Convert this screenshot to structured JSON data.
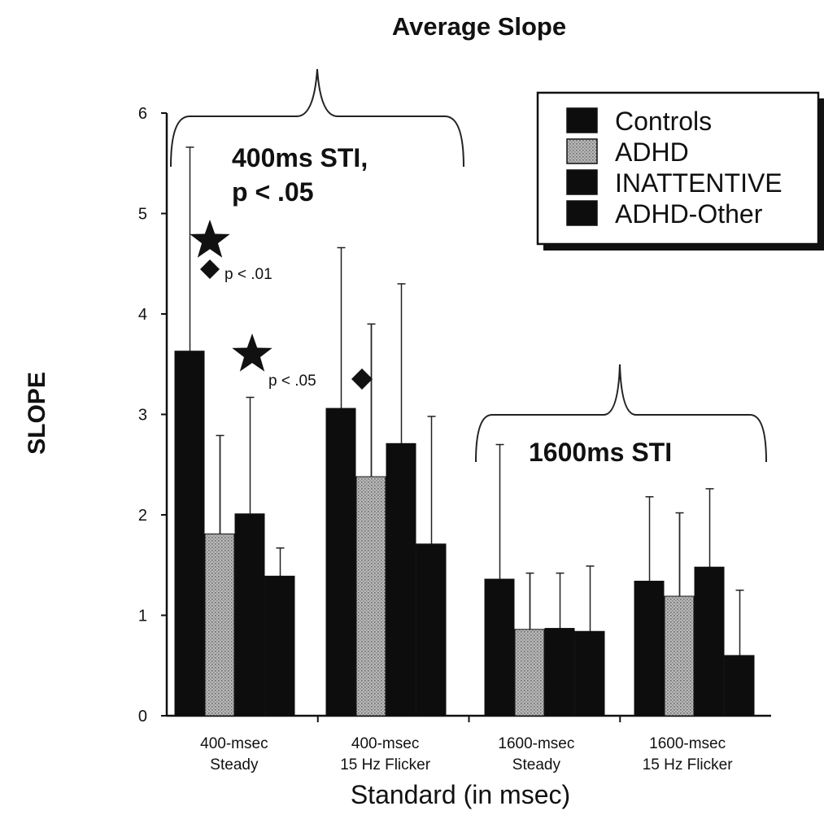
{
  "chart_data": {
    "type": "bar",
    "title": "Average Slope",
    "xlabel": "Standard (in msec)",
    "ylabel": "SLOPE",
    "ylim": [
      0,
      6
    ],
    "yticks": [
      "0",
      "1",
      "2",
      "3",
      "4",
      "5",
      "6"
    ],
    "categories": [
      [
        "400-msec",
        "Steady"
      ],
      [
        "400-msec",
        "15 Hz Flicker"
      ],
      [
        "1600-msec",
        "Steady"
      ],
      [
        "1600-msec",
        "15 Hz Flicker"
      ]
    ],
    "series": [
      {
        "name": "Controls",
        "values": [
          3.63,
          3.06,
          1.36,
          1.34
        ],
        "errors": [
          2.03,
          1.6,
          1.34,
          0.84
        ],
        "color": "#0d0d0d"
      },
      {
        "name": "ADHD",
        "values": [
          1.81,
          2.38,
          0.86,
          1.19
        ],
        "errors": [
          0.98,
          1.52,
          0.56,
          0.83
        ],
        "color": "#a8a8a8"
      },
      {
        "name": "INATTENTIVE",
        "values": [
          2.01,
          2.71,
          0.87,
          1.48
        ],
        "errors": [
          1.16,
          1.59,
          0.55,
          0.78
        ],
        "color": "#0d0d0d"
      },
      {
        "name": "ADHD-Other",
        "values": [
          1.39,
          1.71,
          0.84,
          0.6
        ],
        "errors": [
          0.28,
          1.27,
          0.65,
          0.65
        ],
        "color": "#0d0d0d"
      }
    ],
    "legend_position": "top-right",
    "annotations": {
      "bracket_400": [
        "400ms STI,",
        "p < .05"
      ],
      "bracket_1600": "1600ms STI",
      "sig_01": "p < .01",
      "sig_05": "p < .05"
    }
  }
}
